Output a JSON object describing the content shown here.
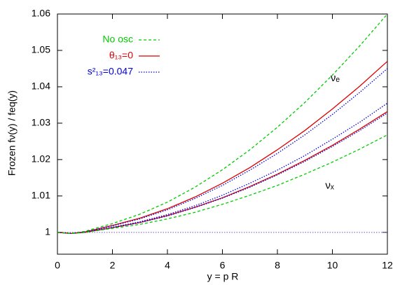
{
  "chart_data": {
    "type": "line",
    "xlabel": "y = p R",
    "ylabel": "Frozen fν(y) / feq(y)",
    "x": [
      0,
      0.5,
      1,
      2,
      3,
      4,
      5,
      6,
      7,
      8,
      9,
      10,
      11,
      12
    ],
    "series": [
      {
        "name": "No osc",
        "color": "#00cc00",
        "dash": "4,3",
        "values": [
          1,
          0.9997,
          1.0003,
          1.0024,
          1.005,
          1.0083,
          1.0124,
          1.0172,
          1.0227,
          1.0289,
          1.0357,
          1.0432,
          1.0513,
          1.06
        ]
      },
      {
        "name": "θ₁₃=0",
        "color": "#dd0000",
        "dash": "",
        "values": [
          1,
          0.9997,
          1.0001,
          1.0019,
          1.0039,
          1.0065,
          1.0097,
          1.0135,
          1.0178,
          1.0227,
          1.028,
          1.0339,
          1.0402,
          1.047
        ]
      },
      {
        "name": "s²₁₃=0.047",
        "color": "#0000dd",
        "dash": "1.5,2",
        "values": [
          1,
          0.9997,
          1.0001,
          1.0018,
          1.0037,
          1.0062,
          1.0093,
          1.0129,
          1.0171,
          1.0217,
          1.0268,
          1.0324,
          1.0385,
          1.045
        ]
      },
      {
        "name": "s²₁₃=0.047",
        "color": "#0000dd",
        "dash": "1.5,2",
        "values": [
          1,
          0.9997,
          1.0,
          1.0014,
          1.0029,
          1.0049,
          1.0073,
          1.0102,
          1.0135,
          1.0171,
          1.0211,
          1.0256,
          1.0303,
          1.0355
        ]
      },
      {
        "name": "θ₁₃=0",
        "color": "#dd0000",
        "dash": "",
        "values": [
          1,
          0.9997,
          1.0,
          1.0013,
          1.0027,
          1.0046,
          1.0069,
          1.0095,
          1.0126,
          1.016,
          1.0198,
          1.0239,
          1.0284,
          1.0332
        ]
      },
      {
        "name": "s²₁₃=0.047",
        "color": "#0000dd",
        "dash": "1.5,2",
        "values": [
          1,
          0.9997,
          1.0,
          1.0013,
          1.0027,
          1.0045,
          1.0068,
          1.0094,
          1.0124,
          1.0158,
          1.0195,
          1.0236,
          1.028,
          1.0328
        ]
      },
      {
        "name": "No osc",
        "color": "#00cc00",
        "dash": "4,3",
        "values": [
          1,
          0.9997,
          1.0,
          1.0011,
          1.0022,
          1.0037,
          1.0055,
          1.0077,
          1.0102,
          1.0129,
          1.016,
          1.0193,
          1.0229,
          1.0268
        ]
      }
    ],
    "hline": {
      "value": 1,
      "color": "#6a5acd"
    },
    "annotations": [
      {
        "text": "νₑ",
        "x": 10.1,
        "y": 1.0423
      },
      {
        "text": "νₓ",
        "x": 9.9,
        "y": 1.0128
      }
    ],
    "legend": "upper left",
    "xlim": [
      0,
      12
    ],
    "xticks": [
      0,
      2,
      4,
      6,
      8,
      10,
      12
    ],
    "ylim": [
      0.994,
      1.06
    ],
    "yticks": [
      1,
      1.01,
      1.02,
      1.03,
      1.04,
      1.05,
      1.06
    ]
  }
}
